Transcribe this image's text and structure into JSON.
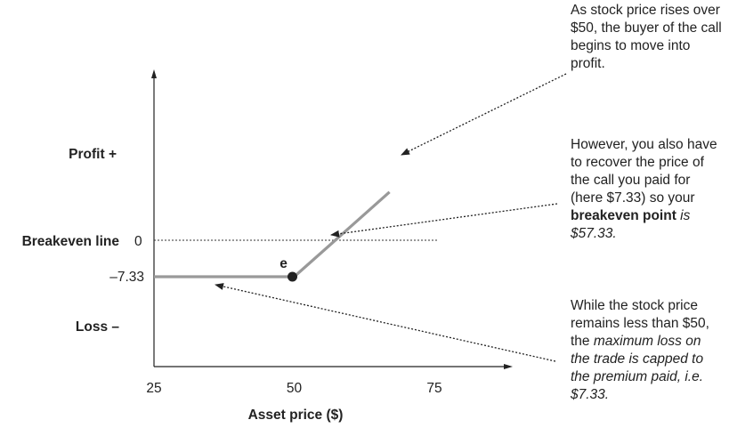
{
  "chart_data": {
    "type": "line",
    "title": "",
    "xlabel": "Asset price ($)",
    "ylabel": "",
    "x_ticks": [
      "25",
      "50",
      "75"
    ],
    "xlim": [
      25,
      75
    ],
    "y_labels": {
      "profit": "Profit +",
      "loss": "Loss –",
      "breakeven": "Breakeven line",
      "zero": "0",
      "premium": "–7.33"
    },
    "series": [
      {
        "x": [
          25,
          50,
          57.33,
          67
        ],
        "y": [
          -7.33,
          -7.33,
          0,
          9.67
        ]
      }
    ],
    "point_label": "e",
    "point": {
      "x": 50,
      "y": -7.33
    },
    "color_payoff": "#999999",
    "color_axis": "#222222"
  },
  "annotations": {
    "a1": {
      "text": "As stock price rises over $50, the buyer of the call begins to move into profit."
    },
    "a2": {
      "t1": "However, you also have to recover the price of the call you paid for (here $7.33) so your ",
      "bold": "breakeven point",
      "ital": " is $57.33."
    },
    "a3": {
      "t1": "While the stock price remains less than $50, the ",
      "ital": "maximum loss on the trade is capped to the premium paid, i.e. $7.33."
    }
  }
}
